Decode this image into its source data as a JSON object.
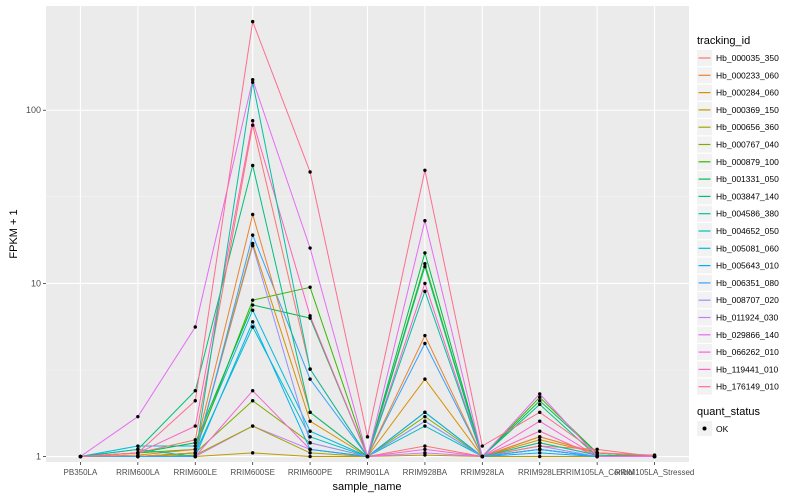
{
  "chart_data": {
    "type": "line",
    "xlabel": "sample_name",
    "ylabel": "FPKM + 1",
    "y_scale": "log10",
    "ylim": [
      0.93,
      400
    ],
    "y_ticks": [
      1,
      10,
      100
    ],
    "y_tick_labels": [
      "1",
      "10",
      "100"
    ],
    "grid": true,
    "legend_position": "right",
    "categories": [
      "PB350LA",
      "RRIM600LA",
      "RRIM600LE",
      "RRIM600SE",
      "RRIM600PE",
      "RRIM901LA",
      "RRIM928BA",
      "RRIM928LA",
      "RRIM928LE",
      "RRIM105LA_Control",
      "RRIM105LA_Stressed"
    ],
    "legend_title": "tracking_id",
    "series": [
      {
        "name": "Hb_000035_350",
        "color": "#F8766D",
        "values": [
          1.0,
          1.05,
          1.25,
          82,
          3.2,
          1.0,
          1.15,
          1.0,
          1.15,
          1.1,
          1.0
        ]
      },
      {
        "name": "Hb_000233_060",
        "color": "#EA8331",
        "values": [
          1.0,
          1.02,
          1.1,
          25,
          1.8,
          1.0,
          5.0,
          1.0,
          1.3,
          1.05,
          1.0
        ]
      },
      {
        "name": "Hb_000284_060",
        "color": "#D89000",
        "values": [
          1.0,
          1.0,
          1.05,
          17,
          1.6,
          1.0,
          2.8,
          1.0,
          1.25,
          1.05,
          1.0
        ]
      },
      {
        "name": "Hb_000369_150",
        "color": "#C09B00",
        "values": [
          1.0,
          1.0,
          1.0,
          1.05,
          1.0,
          1.0,
          1.02,
          1.0,
          1.0,
          1.0,
          1.0
        ]
      },
      {
        "name": "Hb_000656_360",
        "color": "#A3A500",
        "values": [
          1.0,
          1.0,
          1.02,
          1.5,
          1.05,
          1.0,
          1.8,
          1.0,
          1.2,
          1.02,
          1.0
        ]
      },
      {
        "name": "Hb_000767_040",
        "color": "#7CAE00",
        "values": [
          1.0,
          1.0,
          1.05,
          2.1,
          1.2,
          1.0,
          1.7,
          1.0,
          1.3,
          1.05,
          1.0
        ]
      },
      {
        "name": "Hb_000879_100",
        "color": "#39B600",
        "values": [
          1.0,
          1.05,
          1.1,
          8.0,
          9.5,
          1.0,
          13.0,
          1.0,
          2.2,
          1.05,
          1.0
        ]
      },
      {
        "name": "Hb_001331_050",
        "color": "#00BB4E",
        "values": [
          1.0,
          1.05,
          1.2,
          7.5,
          6.3,
          1.0,
          15.0,
          1.0,
          2.1,
          1.05,
          1.0
        ]
      },
      {
        "name": "Hb_003847_140",
        "color": "#00BF7D",
        "values": [
          1.0,
          1.1,
          2.4,
          48,
          1.8,
          1.0,
          12.5,
          1.0,
          2.0,
          1.0,
          1.0
        ]
      },
      {
        "name": "Hb_004586_380",
        "color": "#00C1A3",
        "values": [
          1.0,
          1.1,
          1.0,
          145,
          3.2,
          1.0,
          9.0,
          1.0,
          1.2,
          1.02,
          1.0
        ]
      },
      {
        "name": "Hb_004652_050",
        "color": "#00BFC4",
        "values": [
          1.0,
          1.0,
          1.05,
          5.6,
          1.3,
          1.0,
          1.5,
          1.0,
          1.1,
          1.0,
          1.0
        ]
      },
      {
        "name": "Hb_005081_060",
        "color": "#00BAE0",
        "values": [
          1.0,
          1.15,
          1.15,
          7.0,
          1.4,
          1.0,
          1.6,
          1.0,
          1.1,
          1.0,
          1.0
        ]
      },
      {
        "name": "Hb_005643_010",
        "color": "#00B0F6",
        "values": [
          1.0,
          1.0,
          1.0,
          6.0,
          1.1,
          1.0,
          1.8,
          1.0,
          1.05,
          1.0,
          1.0
        ]
      },
      {
        "name": "Hb_006351_080",
        "color": "#35A2FF",
        "values": [
          1.0,
          1.0,
          1.0,
          19,
          2.8,
          1.0,
          4.5,
          1.0,
          1.1,
          1.0,
          1.0
        ]
      },
      {
        "name": "Hb_008707_020",
        "color": "#9590FF",
        "values": [
          1.0,
          1.0,
          1.05,
          16.5,
          1.2,
          1.0,
          1.6,
          1.0,
          1.15,
          1.0,
          1.0
        ]
      },
      {
        "name": "Hb_011924_030",
        "color": "#C77CFF",
        "values": [
          1.0,
          1.0,
          1.0,
          1.5,
          1.1,
          1.0,
          1.05,
          1.0,
          1.1,
          1.0,
          1.0
        ]
      },
      {
        "name": "Hb_029866_140",
        "color": "#E76BF3",
        "values": [
          1.0,
          1.7,
          5.6,
          150,
          16,
          1.0,
          23,
          1.0,
          2.3,
          1.0,
          1.0
        ]
      },
      {
        "name": "Hb_066262_010",
        "color": "#FA62DB",
        "values": [
          1.0,
          1.0,
          1.0,
          2.4,
          1.1,
          1.0,
          1.1,
          1.0,
          1.6,
          1.0,
          1.0
        ]
      },
      {
        "name": "Hb_119441_010",
        "color": "#FF62BC",
        "values": [
          1.0,
          1.05,
          1.5,
          87,
          6.5,
          1.0,
          10.0,
          1.0,
          1.4,
          1.0,
          1.0
        ]
      },
      {
        "name": "Hb_176149_010",
        "color": "#FF6C91",
        "values": [
          1.0,
          1.05,
          2.1,
          325,
          44,
          1.3,
          45,
          1.15,
          1.8,
          1.05,
          1.02
        ]
      }
    ],
    "extra_legend": {
      "title": "quant_status",
      "entries": [
        {
          "label": "OK",
          "shape": "point"
        }
      ]
    }
  }
}
